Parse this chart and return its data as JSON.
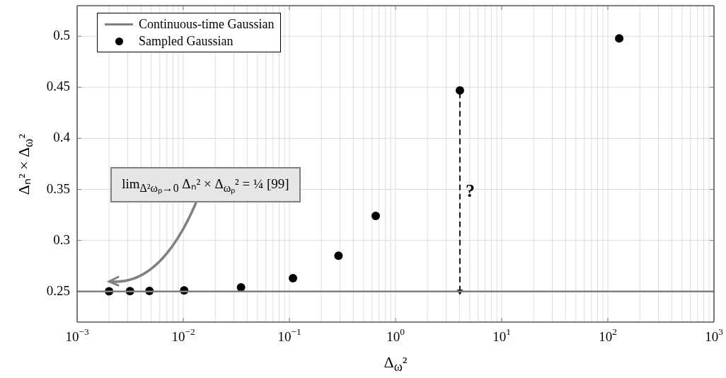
{
  "chart_data": {
    "type": "scatter",
    "xlabel": "Δ$_{ω}$²",
    "ylabel": "Δₙ² × Δ$_{ω}$²",
    "log": "x",
    "grid": true,
    "legend": "top left",
    "xlim": [
      0.001,
      1000
    ],
    "xticks": [
      {
        "value": 0.001,
        "label": "10$^{−3}$"
      },
      {
        "value": 0.01,
        "label": "10$^{−2}$"
      },
      {
        "value": 0.1,
        "label": "10$^{−1}$"
      },
      {
        "value": 1,
        "label": "10$^{0}$"
      },
      {
        "value": 10,
        "label": "10$^{1}$"
      },
      {
        "value": 100,
        "label": "10$^{2}$"
      },
      {
        "value": 1000,
        "label": "10$^{3}$"
      }
    ],
    "ylim": [
      0.22,
      0.53
    ],
    "yticks": [
      0.25,
      0.3,
      0.35,
      0.4,
      0.45,
      0.5
    ],
    "series": [
      {
        "name": "Continuous-time Gaussian",
        "type": "line",
        "color": "#808080",
        "marker": "none",
        "x": [
          0.001,
          1000
        ],
        "values": [
          0.25,
          0.25
        ]
      },
      {
        "name": "Sampled Gaussian",
        "type": "scatter",
        "color": "#000000",
        "marker": "circle",
        "x": [
          0.002,
          0.00315,
          0.0048,
          0.0102,
          0.035,
          0.108,
          0.29,
          0.65,
          4.04,
          128
        ],
        "values": [
          0.2502,
          0.2503,
          0.2505,
          0.251,
          0.254,
          0.263,
          0.285,
          0.324,
          0.447,
          0.498
        ]
      },
      {
        "type": "line",
        "color": "#000000",
        "marker": "triangle",
        "line_style": "dashed",
        "x": [
          4.04,
          4.04
        ],
        "values": [
          0.25,
          0.447
        ]
      }
    ],
    "annotations": [
      "lim$_{Δ²ωₚ→0}$ Δₙ² × Δ$_{ωₚ}$² = ¼ [99]",
      "?"
    ]
  }
}
